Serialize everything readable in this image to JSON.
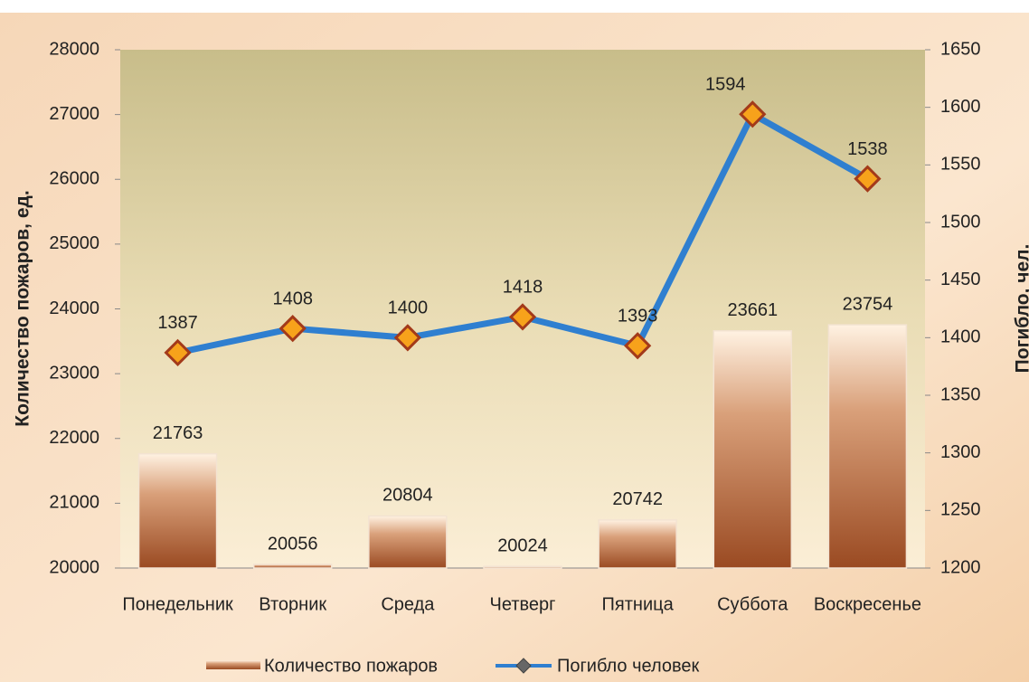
{
  "chart_data": {
    "type": "bar",
    "y_label": "Количество пожаров, ед.",
    "y2_label": "Погибло, чел.",
    "categories": [
      "Понедельник",
      "Вторник",
      "Среда",
      "Четверг",
      "Пятница",
      "Суббота",
      "Воскресенье"
    ],
    "series": [
      {
        "name": "Количество пожаров",
        "type": "bar",
        "color": "#9a4a22",
        "values": [
          21763,
          20056,
          20804,
          20024,
          20742,
          23661,
          23754
        ]
      },
      {
        "name": "Погибло человек",
        "type": "line",
        "axis": "y2",
        "color": "#2f7fd0",
        "values": [
          1387,
          1408,
          1400,
          1418,
          1393,
          1594,
          1538
        ]
      }
    ],
    "ylim": [
      20000,
      28000
    ],
    "yticks": [
      20000,
      21000,
      22000,
      23000,
      24000,
      25000,
      26000,
      27000,
      28000
    ],
    "y2lim": [
      1200,
      1650
    ],
    "y2ticks": [
      1200,
      1250,
      1300,
      1350,
      1400,
      1450,
      1500,
      1550,
      1600,
      1650
    ],
    "legend": "bottom"
  }
}
